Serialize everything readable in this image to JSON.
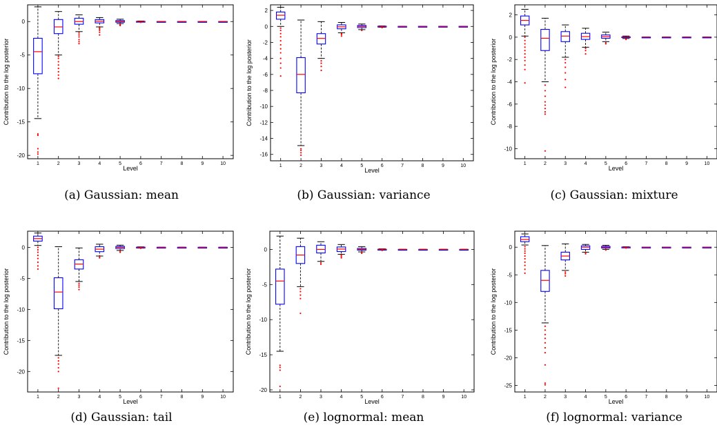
{
  "chart_data": [
    {
      "type": "box",
      "caption": "(a) Gaussian: mean",
      "xlabel": "Level",
      "ylabel": "Contribution to the log posterior",
      "categories": [
        "1",
        "2",
        "3",
        "4",
        "5",
        "6",
        "7",
        "8",
        "9",
        "10"
      ],
      "ylim": [
        -20.5,
        2.5
      ],
      "yticks": [
        0,
        -5,
        -10,
        -15,
        -20
      ],
      "boxes": [
        {
          "q1": -7.8,
          "median": -4.5,
          "q3": -2.5,
          "whisker_low": -14.5,
          "whisker_high": 2.2,
          "outliers": [
            -16.8,
            -17.0,
            -19.0,
            -19.5,
            -19.8
          ]
        },
        {
          "q1": -1.8,
          "median": -0.8,
          "q3": 0.3,
          "whisker_low": -5.0,
          "whisker_high": 1.5,
          "outliers": [
            -5.2,
            -5.5,
            -6.0,
            -6.5,
            -7.0,
            -7.5,
            -8.0,
            -8.5
          ]
        },
        {
          "q1": -0.4,
          "median": 0.0,
          "q3": 0.5,
          "whisker_low": -1.5,
          "whisker_high": 1.0,
          "outliers": [
            -1.7,
            -2.0,
            -2.3,
            -2.7,
            -3.0,
            -3.3
          ]
        },
        {
          "q1": -0.2,
          "median": 0.05,
          "q3": 0.3,
          "whisker_low": -0.8,
          "whisker_high": 0.6,
          "outliers": [
            -0.9,
            -1.1,
            -1.3,
            -1.6,
            -2.0
          ]
        },
        {
          "q1": -0.1,
          "median": 0.0,
          "q3": 0.15,
          "whisker_low": -0.3,
          "whisker_high": 0.35,
          "outliers": [
            -0.4,
            -0.5,
            -0.6
          ]
        },
        {
          "q1": -0.03,
          "median": 0.0,
          "q3": 0.03,
          "whisker_low": -0.08,
          "whisker_high": 0.08,
          "outliers": [
            -0.12
          ]
        },
        {
          "q1": -0.01,
          "median": 0.0,
          "q3": 0.01,
          "whisker_low": -0.02,
          "whisker_high": 0.02,
          "outliers": []
        },
        {
          "q1": -0.01,
          "median": 0.0,
          "q3": 0.01,
          "whisker_low": -0.02,
          "whisker_high": 0.02,
          "outliers": []
        },
        {
          "q1": -0.01,
          "median": 0.0,
          "q3": 0.01,
          "whisker_low": -0.02,
          "whisker_high": 0.02,
          "outliers": []
        },
        {
          "q1": -0.01,
          "median": 0.0,
          "q3": 0.01,
          "whisker_low": -0.02,
          "whisker_high": 0.02,
          "outliers": []
        }
      ]
    },
    {
      "type": "box",
      "caption": "(b) Gaussian: variance",
      "xlabel": "Level",
      "ylabel": "Contribution to the log posterior",
      "categories": [
        "1",
        "2",
        "3",
        "4",
        "5",
        "6",
        "7",
        "8",
        "9",
        "10"
      ],
      "ylim": [
        -16.8,
        2.7
      ],
      "yticks": [
        2,
        0,
        -2,
        -4,
        -6,
        -8,
        -10,
        -12,
        -14,
        -16
      ],
      "boxes": [
        {
          "q1": 0.9,
          "median": 1.4,
          "q3": 1.8,
          "whisker_low": 0.0,
          "whisker_high": 2.4,
          "outliers": [
            -0.2,
            -0.5,
            -0.9,
            -1.3,
            -1.8,
            -2.3,
            -2.8,
            -3.3,
            -4.0,
            -4.6,
            -5.2,
            -6.2
          ]
        },
        {
          "q1": -8.3,
          "median": -6.0,
          "q3": -3.9,
          "whisker_low": -14.9,
          "whisker_high": 0.8,
          "outliers": [
            -15.3,
            -15.5,
            -15.8,
            -16.1
          ]
        },
        {
          "q1": -2.2,
          "median": -1.5,
          "q3": -0.9,
          "whisker_low": -4.0,
          "whisker_high": 0.6,
          "outliers": [
            -4.3,
            -4.6,
            -5.0,
            -5.5
          ]
        },
        {
          "q1": -0.3,
          "median": -0.05,
          "q3": 0.2,
          "whisker_low": -0.8,
          "whisker_high": 0.5,
          "outliers": [
            -0.9,
            -1.0,
            -1.2
          ]
        },
        {
          "q1": -0.15,
          "median": 0.0,
          "q3": 0.12,
          "whisker_low": -0.4,
          "whisker_high": 0.3,
          "outliers": [
            -0.5
          ]
        },
        {
          "q1": -0.04,
          "median": 0.0,
          "q3": 0.03,
          "whisker_low": -0.1,
          "whisker_high": 0.06,
          "outliers": [
            -0.15
          ]
        },
        {
          "q1": -0.01,
          "median": 0.0,
          "q3": 0.01,
          "whisker_low": -0.02,
          "whisker_high": 0.02,
          "outliers": []
        },
        {
          "q1": -0.01,
          "median": 0.0,
          "q3": 0.01,
          "whisker_low": -0.02,
          "whisker_high": 0.02,
          "outliers": []
        },
        {
          "q1": -0.01,
          "median": 0.0,
          "q3": 0.01,
          "whisker_low": -0.02,
          "whisker_high": 0.02,
          "outliers": []
        },
        {
          "q1": -0.01,
          "median": 0.0,
          "q3": 0.01,
          "whisker_low": -0.02,
          "whisker_high": 0.02,
          "outliers": []
        }
      ]
    },
    {
      "type": "box",
      "caption": "(c) Gaussian: mixture",
      "xlabel": "Level",
      "ylabel": "Contribution to the log posterior",
      "categories": [
        "1",
        "2",
        "3",
        "4",
        "5",
        "6",
        "7",
        "8",
        "9",
        "10"
      ],
      "ylim": [
        -10.9,
        2.9
      ],
      "yticks": [
        2,
        0,
        -2,
        -4,
        -6,
        -8,
        -10
      ],
      "boxes": [
        {
          "q1": 1.1,
          "median": 1.5,
          "q3": 1.9,
          "whisker_low": 0.1,
          "whisker_high": 2.5,
          "outliers": [
            0.0,
            -0.3,
            -0.6,
            -0.9,
            -1.2,
            -1.5,
            -1.8,
            -2.1,
            -2.5,
            -2.9,
            -4.1
          ]
        },
        {
          "q1": -1.2,
          "median": -0.1,
          "q3": 0.7,
          "whisker_low": -4.0,
          "whisker_high": 1.7,
          "outliers": [
            -4.3,
            -4.8,
            -5.3,
            -5.8,
            -6.1,
            -6.4,
            -6.7,
            -6.9,
            -10.2
          ]
        },
        {
          "q1": -0.4,
          "median": 0.1,
          "q3": 0.5,
          "whisker_low": -1.8,
          "whisker_high": 1.1,
          "outliers": [
            -2.0,
            -2.3,
            -2.7,
            -3.2,
            -3.8,
            -4.5
          ]
        },
        {
          "q1": -0.2,
          "median": 0.05,
          "q3": 0.35,
          "whisker_low": -0.9,
          "whisker_high": 0.8,
          "outliers": [
            -1.0,
            -1.2,
            -1.5
          ]
        },
        {
          "q1": -0.1,
          "median": 0.05,
          "q3": 0.2,
          "whisker_low": -0.4,
          "whisker_high": 0.45,
          "outliers": [
            -0.5,
            -0.6
          ]
        },
        {
          "q1": -0.04,
          "median": 0.0,
          "q3": 0.03,
          "whisker_low": -0.12,
          "whisker_high": 0.1,
          "outliers": [
            -0.2
          ]
        },
        {
          "q1": -0.01,
          "median": 0.0,
          "q3": 0.01,
          "whisker_low": -0.02,
          "whisker_high": 0.02,
          "outliers": []
        },
        {
          "q1": -0.01,
          "median": 0.0,
          "q3": 0.01,
          "whisker_low": -0.02,
          "whisker_high": 0.02,
          "outliers": []
        },
        {
          "q1": -0.01,
          "median": 0.0,
          "q3": 0.01,
          "whisker_low": -0.02,
          "whisker_high": 0.02,
          "outliers": []
        },
        {
          "q1": -0.01,
          "median": 0.0,
          "q3": 0.01,
          "whisker_low": -0.02,
          "whisker_high": 0.02,
          "outliers": []
        }
      ]
    },
    {
      "type": "box",
      "caption": "(d) Gaussian: tail",
      "xlabel": "Level",
      "ylabel": "Contribution to the log posterior",
      "categories": [
        "1",
        "2",
        "3",
        "4",
        "5",
        "6",
        "7",
        "8",
        "9",
        "10"
      ],
      "ylim": [
        -23.3,
        2.6
      ],
      "yticks": [
        0,
        -5,
        -10,
        -15,
        -20
      ],
      "boxes": [
        {
          "q1": 1.0,
          "median": 1.4,
          "q3": 1.8,
          "whisker_low": 0.3,
          "whisker_high": 2.3,
          "outliers": [
            0.0,
            -0.4,
            -0.8,
            -1.3,
            -1.8,
            -2.4,
            -3.0,
            -3.5
          ]
        },
        {
          "q1": -9.9,
          "median": -7.2,
          "q3": -4.9,
          "whisker_low": -17.4,
          "whisker_high": 0.1,
          "outliers": [
            -17.8,
            -18.3,
            -18.8,
            -19.4,
            -20.0,
            -22.7
          ]
        },
        {
          "q1": -3.5,
          "median": -2.7,
          "q3": -2.0,
          "whisker_low": -5.5,
          "whisker_high": -0.1,
          "outliers": [
            -5.8,
            -6.1,
            -6.4,
            -6.8
          ]
        },
        {
          "q1": -0.7,
          "median": -0.3,
          "q3": 0.1,
          "whisker_low": -1.4,
          "whisker_high": 0.5,
          "outliers": [
            -1.5,
            -1.7
          ]
        },
        {
          "q1": -0.2,
          "median": 0.0,
          "q3": 0.15,
          "whisker_low": -0.5,
          "whisker_high": 0.35,
          "outliers": [
            -0.6,
            -0.8
          ]
        },
        {
          "q1": -0.04,
          "median": 0.0,
          "q3": 0.03,
          "whisker_low": -0.1,
          "whisker_high": 0.08,
          "outliers": [
            -0.15
          ]
        },
        {
          "q1": -0.01,
          "median": 0.0,
          "q3": 0.01,
          "whisker_low": -0.02,
          "whisker_high": 0.02,
          "outliers": []
        },
        {
          "q1": -0.01,
          "median": 0.0,
          "q3": 0.01,
          "whisker_low": -0.02,
          "whisker_high": 0.02,
          "outliers": []
        },
        {
          "q1": -0.01,
          "median": 0.0,
          "q3": 0.01,
          "whisker_low": -0.02,
          "whisker_high": 0.02,
          "outliers": []
        },
        {
          "q1": -0.01,
          "median": 0.0,
          "q3": 0.01,
          "whisker_low": -0.02,
          "whisker_high": 0.02,
          "outliers": []
        }
      ]
    },
    {
      "type": "box",
      "caption": "(e) lognormal: mean",
      "xlabel": "Level",
      "ylabel": "Contribution to the log posterior",
      "categories": [
        "1",
        "2",
        "3",
        "4",
        "5",
        "6",
        "7",
        "8",
        "9",
        "10"
      ],
      "ylim": [
        -20.3,
        2.6
      ],
      "yticks": [
        0,
        -5,
        -10,
        -15,
        -20
      ],
      "boxes": [
        {
          "q1": -7.8,
          "median": -4.5,
          "q3": -2.8,
          "whisker_low": -14.5,
          "whisker_high": 1.9,
          "outliers": [
            -16.5,
            -16.8,
            -17.2,
            -19.5
          ]
        },
        {
          "q1": -2.0,
          "median": -0.8,
          "q3": 0.4,
          "whisker_low": -5.3,
          "whisker_high": 1.6,
          "outliers": [
            -5.6,
            -6.0,
            -6.5,
            -7.0,
            -9.1
          ]
        },
        {
          "q1": -0.5,
          "median": 0.0,
          "q3": 0.6,
          "whisker_low": -1.7,
          "whisker_high": 1.1,
          "outliers": [
            -1.9,
            -2.1
          ]
        },
        {
          "q1": -0.3,
          "median": 0.05,
          "q3": 0.35,
          "whisker_low": -0.7,
          "whisker_high": 0.7,
          "outliers": [
            -0.8,
            -1.0,
            -1.2
          ]
        },
        {
          "q1": -0.1,
          "median": 0.0,
          "q3": 0.15,
          "whisker_low": -0.35,
          "whisker_high": 0.4,
          "outliers": [
            -0.45,
            -0.55
          ]
        },
        {
          "q1": -0.04,
          "median": 0.0,
          "q3": 0.03,
          "whisker_low": -0.1,
          "whisker_high": 0.08,
          "outliers": [
            -0.14
          ]
        },
        {
          "q1": -0.01,
          "median": 0.0,
          "q3": 0.01,
          "whisker_low": -0.02,
          "whisker_high": 0.02,
          "outliers": []
        },
        {
          "q1": -0.01,
          "median": 0.0,
          "q3": 0.01,
          "whisker_low": -0.02,
          "whisker_high": 0.02,
          "outliers": []
        },
        {
          "q1": -0.01,
          "median": 0.0,
          "q3": 0.01,
          "whisker_low": -0.02,
          "whisker_high": 0.02,
          "outliers": []
        },
        {
          "q1": -0.01,
          "median": 0.0,
          "q3": 0.01,
          "whisker_low": -0.02,
          "whisker_high": 0.02,
          "outliers": []
        }
      ]
    },
    {
      "type": "box",
      "caption": "(f) lognormal: variance",
      "xlabel": "Level",
      "ylabel": "Contribution to the log posterior",
      "categories": [
        "1",
        "2",
        "3",
        "4",
        "5",
        "6",
        "7",
        "8",
        "9",
        "10"
      ],
      "ylim": [
        -26.2,
        2.9
      ],
      "yticks": [
        0,
        -5,
        -10,
        -15,
        -20,
        -25
      ],
      "boxes": [
        {
          "q1": 1.0,
          "median": 1.4,
          "q3": 1.9,
          "whisker_low": 0.4,
          "whisker_high": 2.4,
          "outliers": [
            0.1,
            -0.3,
            -0.7,
            -1.1,
            -1.6,
            -2.1,
            -2.7,
            -3.3,
            -4.0,
            -4.7
          ]
        },
        {
          "q1": -8.0,
          "median": -6.0,
          "q3": -4.2,
          "whisker_low": -13.7,
          "whisker_high": 0.3,
          "outliers": [
            -14.3,
            -15.0,
            -15.8,
            -16.5,
            -17.3,
            -18.2,
            -19.1,
            -21.3,
            -24.6,
            -24.9
          ]
        },
        {
          "q1": -2.3,
          "median": -1.6,
          "q3": -0.9,
          "whisker_low": -4.2,
          "whisker_high": 0.6,
          "outliers": [
            -4.5,
            -4.8,
            -5.2
          ]
        },
        {
          "q1": -0.4,
          "median": 0.0,
          "q3": 0.25,
          "whisker_low": -0.9,
          "whisker_high": 0.5,
          "outliers": [
            -1.0,
            -1.2
          ]
        },
        {
          "q1": -0.15,
          "median": 0.0,
          "q3": 0.15,
          "whisker_low": -0.4,
          "whisker_high": 0.35,
          "outliers": [
            -0.5
          ]
        },
        {
          "q1": -0.04,
          "median": 0.0,
          "q3": 0.03,
          "whisker_low": -0.1,
          "whisker_high": 0.08,
          "outliers": [
            -0.14
          ]
        },
        {
          "q1": -0.01,
          "median": 0.0,
          "q3": 0.01,
          "whisker_low": -0.02,
          "whisker_high": 0.02,
          "outliers": []
        },
        {
          "q1": -0.01,
          "median": 0.0,
          "q3": 0.01,
          "whisker_low": -0.02,
          "whisker_high": 0.02,
          "outliers": []
        },
        {
          "q1": -0.01,
          "median": 0.0,
          "q3": 0.01,
          "whisker_low": -0.02,
          "whisker_high": 0.02,
          "outliers": []
        },
        {
          "q1": -0.01,
          "median": 0.0,
          "q3": 0.01,
          "whisker_low": -0.02,
          "whisker_high": 0.02,
          "outliers": []
        }
      ]
    }
  ],
  "colors": {
    "box": "#0000ff",
    "median": "#ff0000",
    "whisker": "#000000",
    "outlier": "#ff0000",
    "axes": "#000000"
  }
}
